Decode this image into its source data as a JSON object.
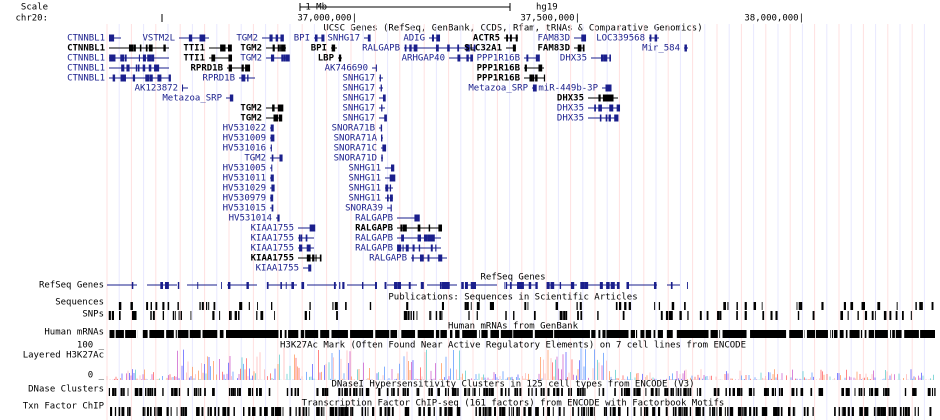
{
  "header": {
    "scale": "Scale",
    "chrom": "chr20:",
    "scale_bar": "1 Mb",
    "assembly": "hg19",
    "positions": [
      "37,000,000|",
      "37,500,000|",
      "38,000,000|"
    ]
  },
  "tracks": [
    {
      "side": "RefSeq Genes",
      "title": "RefSeq Genes"
    },
    {
      "side": "Sequences",
      "title": "Publications: Sequences in Scientific Articles"
    },
    {
      "side": "SNPs",
      "title": null
    },
    {
      "side": "Human mRNAs",
      "title": "Human mRNAs from GenBank"
    },
    {
      "side": "Layered H3K27Ac",
      "title": "H3K27Ac Mark (Often Found Near Active Regulatory Elements) on 7 cell lines from ENCODE"
    },
    {
      "side": "DNase Clusters",
      "title": "DNaseI Hypersensitivity Clusters in 125 cell types from ENCODE (V3)"
    },
    {
      "side": "Txn Factor ChIP",
      "title": "Transcription Factor ChIP-seq (161 factors) from ENCODE with Factorbook Motifs"
    }
  ],
  "ucsc_title": "UCSC Genes (RefSeq, GenBank, CCDS, Rfam, tRNAs & Comparative Genomics)",
  "signal_max": "100 _",
  "signal_min": "0 _",
  "genes": [
    {
      "label": "CTNNBL1",
      "bold": false
    },
    {
      "label": "VSTM2L",
      "bold": false
    },
    {
      "label": "TGM2",
      "bold": false
    },
    {
      "label": "BPI",
      "bold": false
    },
    {
      "label": "SNHG17",
      "bold": false
    },
    {
      "label": "ADIG",
      "bold": false
    },
    {
      "label": "ACTR5",
      "bold": true
    },
    {
      "label": "FAM83D",
      "bold": false
    },
    {
      "label": "LOC339568",
      "bold": false
    },
    {
      "label": "CTNNBL1",
      "bold": true
    },
    {
      "label": "TTI1",
      "bold": true
    },
    {
      "label": "TGM2",
      "bold": true
    },
    {
      "label": "BPI",
      "bold": true
    },
    {
      "label": "RALGAPB",
      "bold": false
    },
    {
      "label": "SLC32A1",
      "bold": true
    },
    {
      "label": "FAM83D",
      "bold": true
    },
    {
      "label": "Mir_584",
      "bold": false
    },
    {
      "label": "CTNNBL1",
      "bold": false
    },
    {
      "label": "TTI1",
      "bold": true
    },
    {
      "label": "TGM2",
      "bold": false
    },
    {
      "label": "LBP",
      "bold": true
    },
    {
      "label": "ARHGAP40",
      "bold": false
    },
    {
      "label": "PPP1R16B",
      "bold": false
    },
    {
      "label": "DHX35",
      "bold": false
    },
    {
      "label": "CTNNBL1",
      "bold": false
    },
    {
      "label": "RPRD1B",
      "bold": true
    },
    {
      "label": "AK746690",
      "bold": false
    },
    {
      "label": "PPP1R16B",
      "bold": true
    },
    {
      "label": "CTNNBL1",
      "bold": false
    },
    {
      "label": "RPRD1B",
      "bold": false
    },
    {
      "label": "SNHG17",
      "bold": false
    },
    {
      "label": "PPP1R16B",
      "bold": true
    },
    {
      "label": "AK123872",
      "bold": false
    },
    {
      "label": "SNHG17",
      "bold": false
    },
    {
      "label": "Metazoa_SRP",
      "bold": false
    },
    {
      "label": "miR-449b-3P",
      "bold": false
    },
    {
      "label": "Metazoa_SRP",
      "bold": false
    },
    {
      "label": "SNHG17",
      "bold": false
    },
    {
      "label": "DHX35",
      "bold": true
    },
    {
      "label": "TGM2",
      "bold": true
    },
    {
      "label": "SNHG17",
      "bold": false
    },
    {
      "label": "DHX35",
      "bold": false
    },
    {
      "label": "TGM2",
      "bold": true
    },
    {
      "label": "SNHG17",
      "bold": false
    },
    {
      "label": "DHX35",
      "bold": false
    },
    {
      "label": "HV531022",
      "bold": false
    },
    {
      "label": "SNORA71B",
      "bold": false
    },
    {
      "label": "HV531009",
      "bold": false
    },
    {
      "label": "SNORA71A",
      "bold": false
    },
    {
      "label": "HV531016",
      "bold": false
    },
    {
      "label": "SNORA71C",
      "bold": false
    },
    {
      "label": "TGM2",
      "bold": false
    },
    {
      "label": "SNORA71D",
      "bold": false
    },
    {
      "label": "HV531005",
      "bold": false
    },
    {
      "label": "SNHG11",
      "bold": false
    },
    {
      "label": "HV531011",
      "bold": false
    },
    {
      "label": "SNHG11",
      "bold": false
    },
    {
      "label": "HV531029",
      "bold": false
    },
    {
      "label": "SNHG11",
      "bold": false
    },
    {
      "label": "HV530979",
      "bold": false
    },
    {
      "label": "SNHG11",
      "bold": false
    },
    {
      "label": "HV531015",
      "bold": false
    },
    {
      "label": "SNORA39",
      "bold": false
    },
    {
      "label": "HV531014",
      "bold": false
    },
    {
      "label": "RALGAPB",
      "bold": false
    },
    {
      "label": "KIAA1755",
      "bold": false
    },
    {
      "label": "RALGAPB",
      "bold": true
    },
    {
      "label": "KIAA1755",
      "bold": false
    },
    {
      "label": "RALGAPB",
      "bold": false
    },
    {
      "label": "KIAA1755",
      "bold": false
    },
    {
      "label": "RALGAPB",
      "bold": false
    },
    {
      "label": "KIAA1755",
      "bold": true
    },
    {
      "label": "RALGAPB",
      "bold": false
    },
    {
      "label": "KIAA1755",
      "bold": false
    }
  ]
}
